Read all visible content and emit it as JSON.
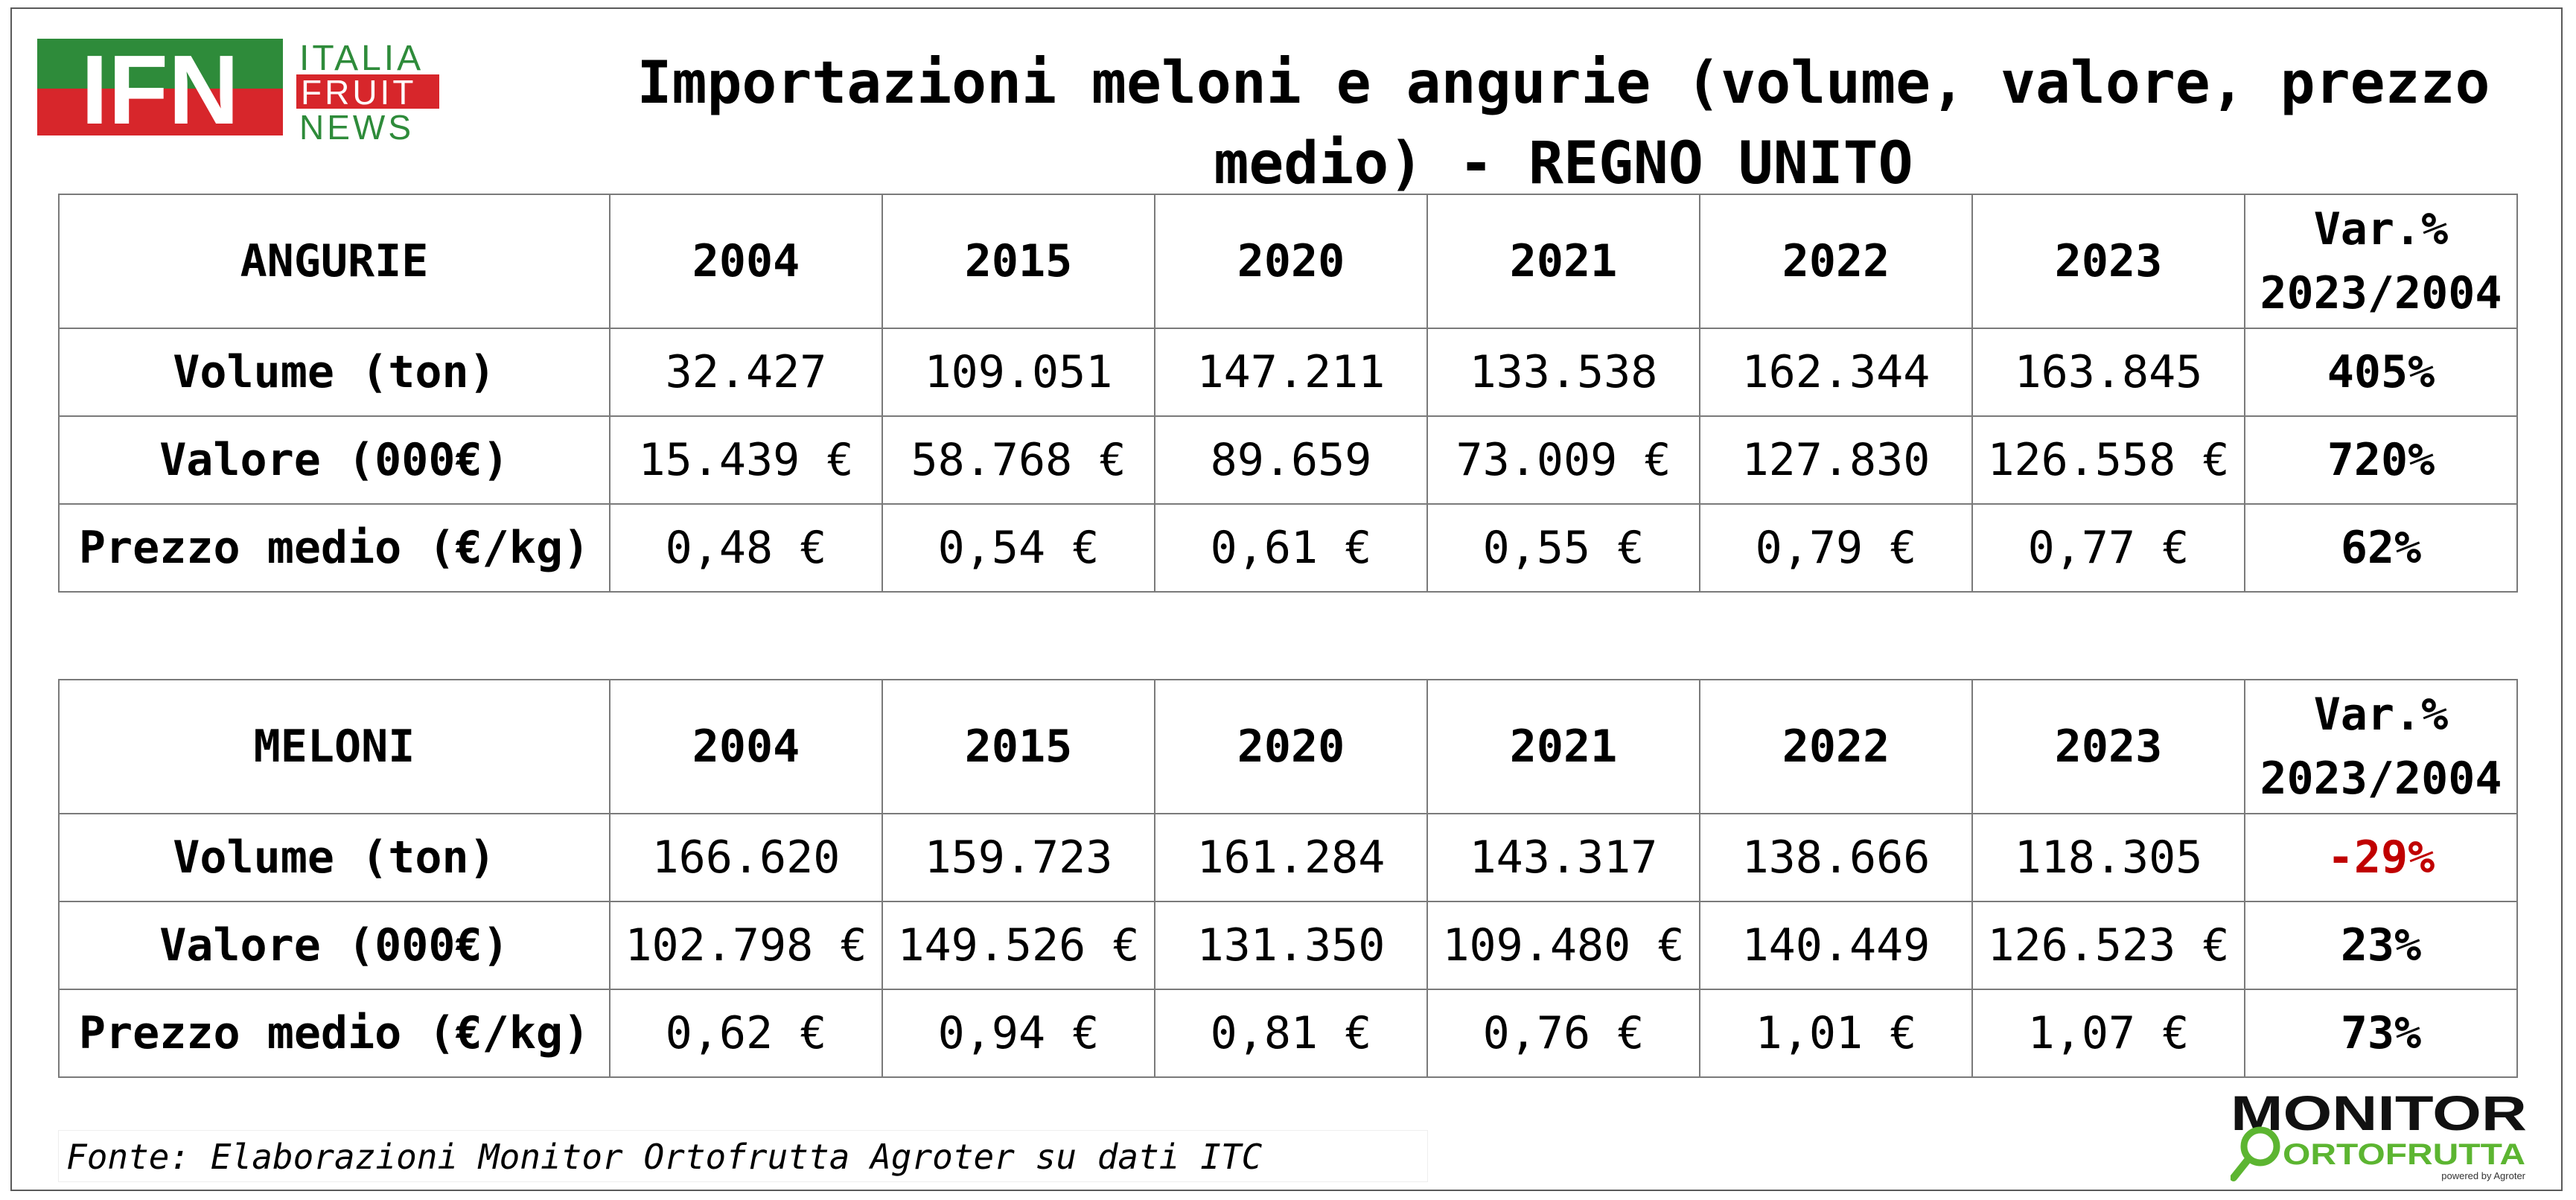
{
  "brand": {
    "ifn_letters": "IFN",
    "ifn_line1": "ITALIA",
    "ifn_line2": "FRUIT",
    "ifn_line3": "NEWS",
    "monitor_top": "MONITOR",
    "monitor_bottom": "ORTOFRUTTA",
    "monitor_powered": "powered by Agroter",
    "colors": {
      "green": "#2e8b3a",
      "red": "#d7262b",
      "lime": "#5cb531"
    }
  },
  "title": "Importazioni meloni e angurie (volume, valore, prezzo medio) - REGNO UNITO",
  "angurie": {
    "label": "ANGURIE",
    "years": [
      "2004",
      "2015",
      "2020",
      "2021",
      "2022",
      "2023"
    ],
    "var_line1": "Var.%",
    "var_line2": "2023/2004",
    "rows": [
      {
        "label": "Volume (ton)",
        "values": [
          "32.427",
          "109.051",
          "147.211",
          "133.538",
          "162.344",
          "163.845"
        ],
        "var": "405%"
      },
      {
        "label": "Valore (000€)",
        "values": [
          "15.439 €",
          "58.768 €",
          "89.659",
          "73.009 €",
          "127.830",
          "126.558 €"
        ],
        "var": "720%"
      },
      {
        "label": "Prezzo medio (€/kg)",
        "values": [
          "0,48 €",
          "0,54 €",
          "0,61 €",
          "0,55 €",
          "0,79 €",
          "0,77 €"
        ],
        "var": "62%"
      }
    ]
  },
  "meloni": {
    "label": "MELONI",
    "years": [
      "2004",
      "2015",
      "2020",
      "2021",
      "2022",
      "2023"
    ],
    "var_line1": "Var.%",
    "var_line2": "2023/2004",
    "rows": [
      {
        "label": "Volume (ton)",
        "values": [
          "166.620",
          "159.723",
          "161.284",
          "143.317",
          "138.666",
          "118.305"
        ],
        "var": "-29%"
      },
      {
        "label": "Valore (000€)",
        "values": [
          "102.798 €",
          "149.526 €",
          "131.350",
          "109.480 €",
          "140.449",
          "126.523 €"
        ],
        "var": "23%"
      },
      {
        "label": "Prezzo medio (€/kg)",
        "values": [
          "0,62 €",
          "0,94 €",
          "0,81 €",
          "0,76 €",
          "1,01 €",
          "1,07 €"
        ],
        "var": "73%"
      }
    ]
  },
  "source": "Fonte: Elaborazioni Monitor Ortofrutta Agroter su dati ITC"
}
